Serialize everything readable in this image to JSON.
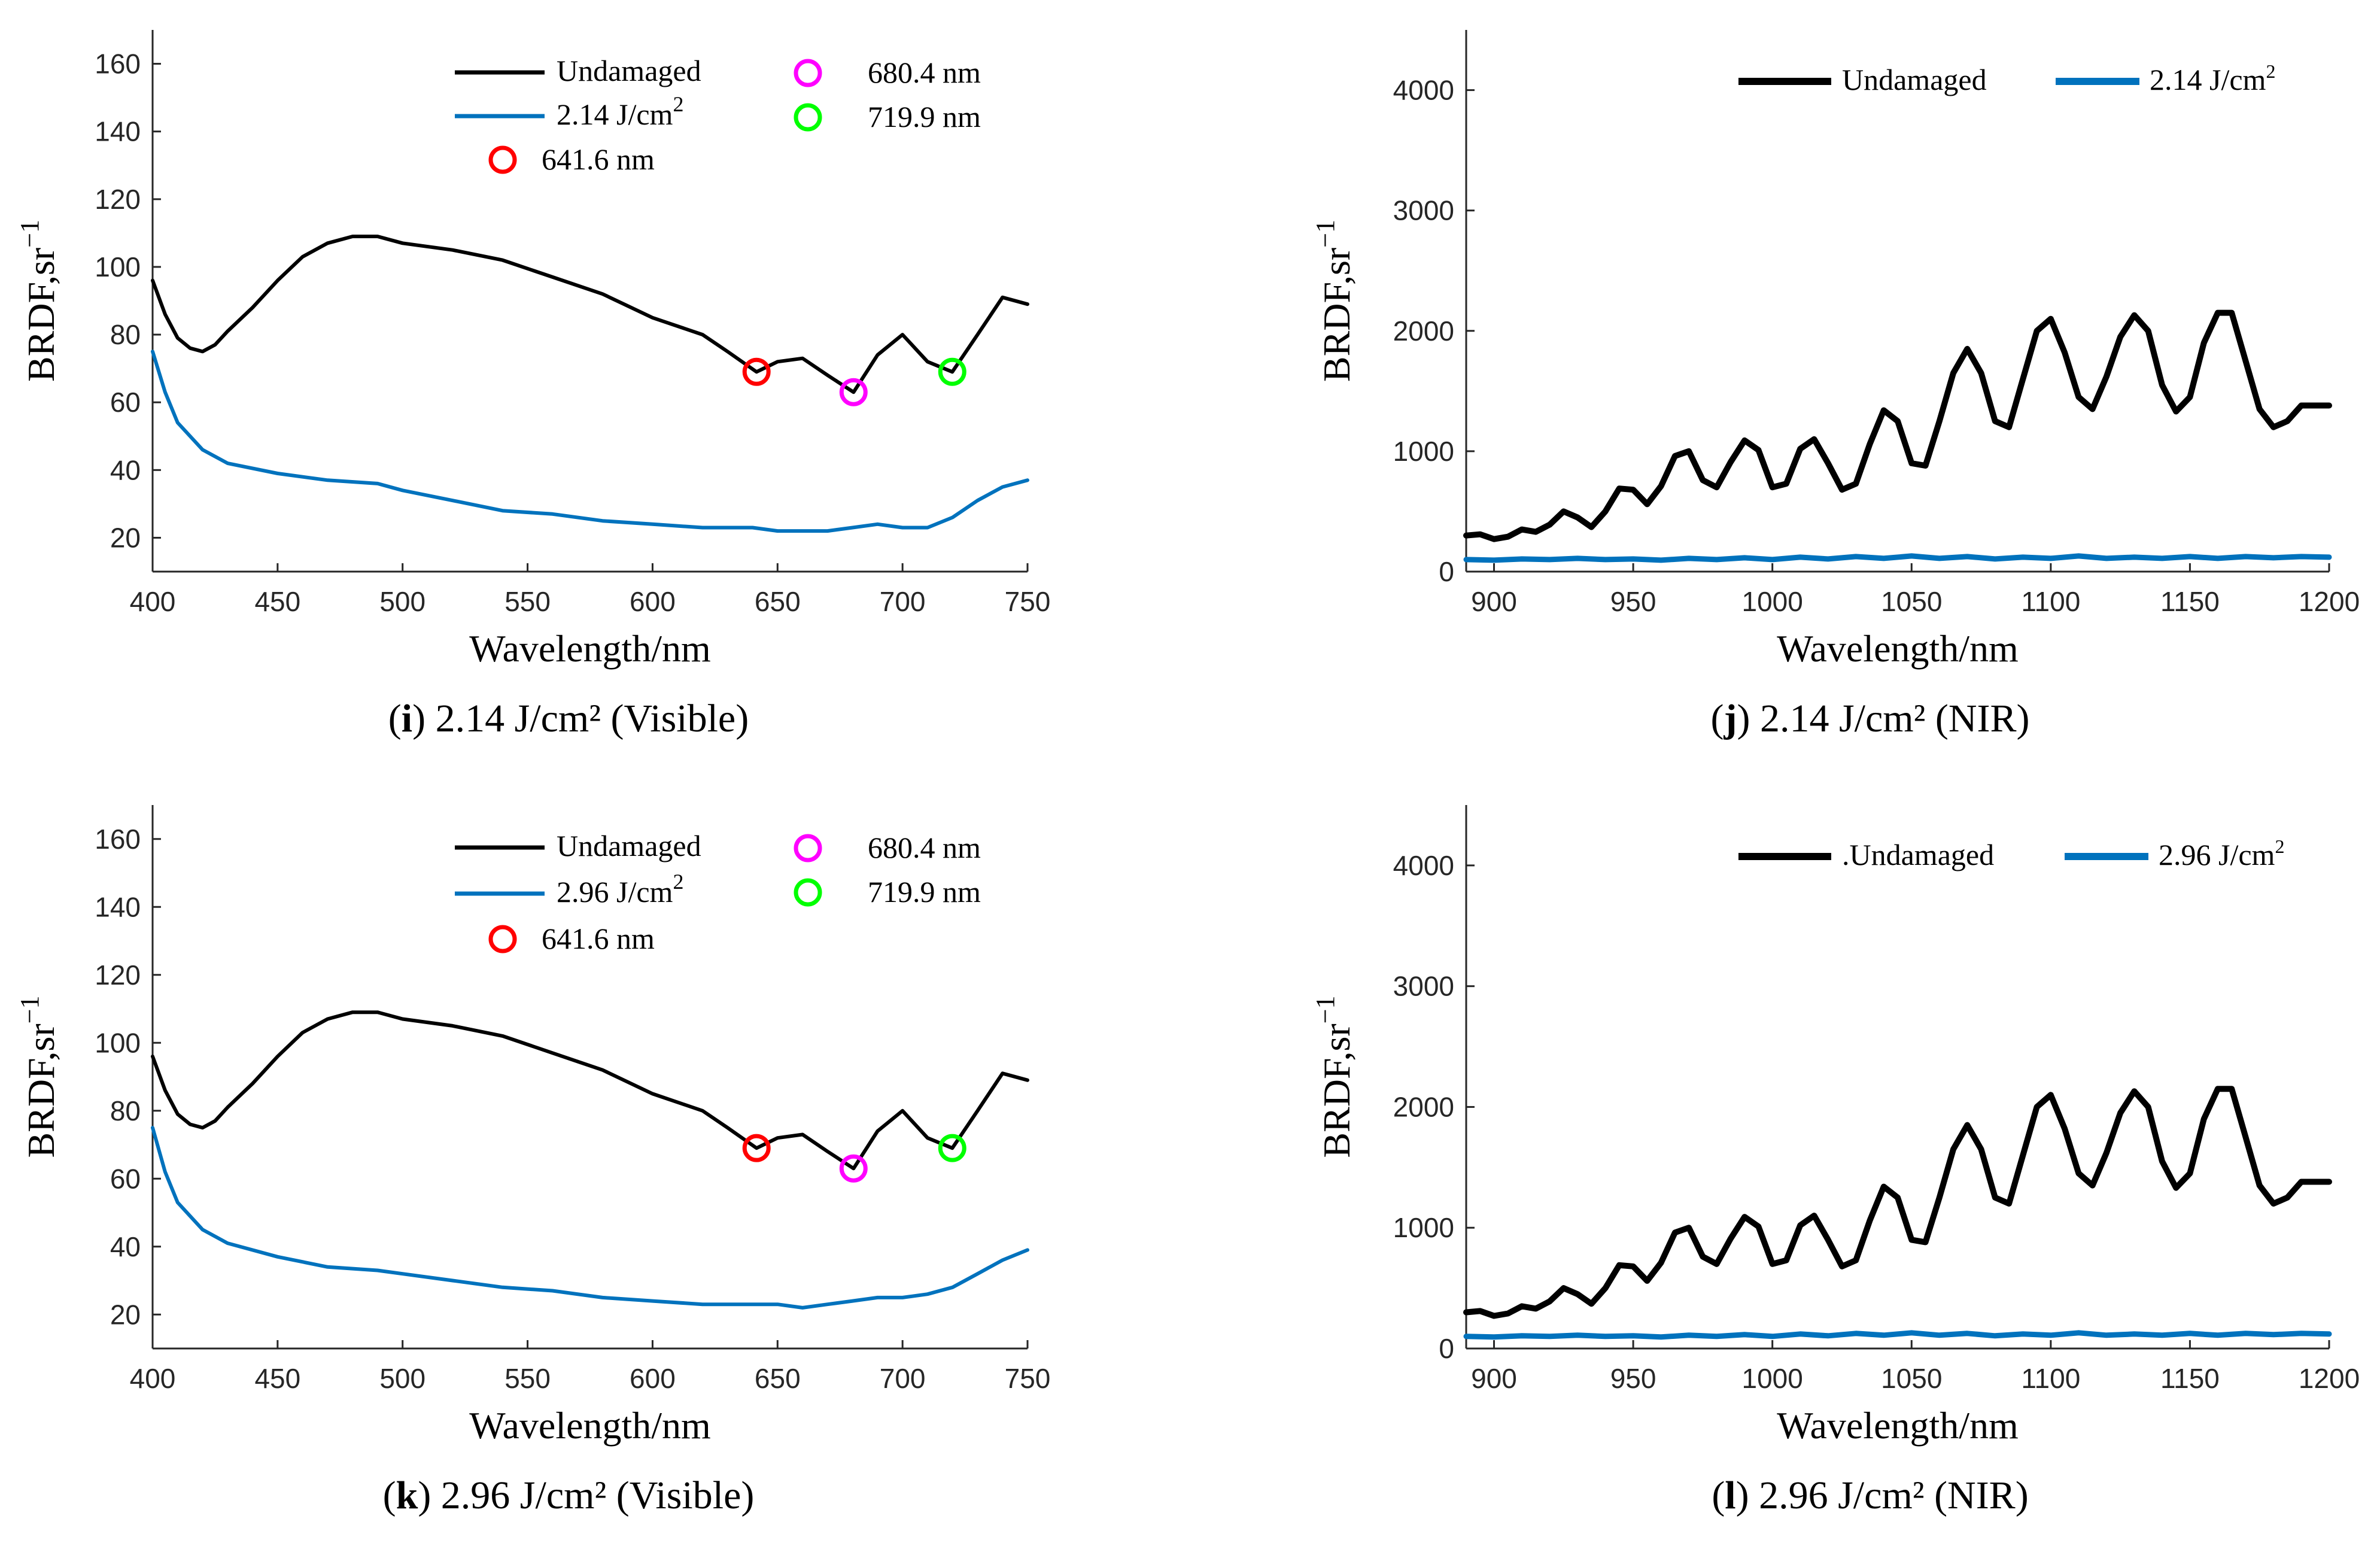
{
  "colors": {
    "undamaged": "#000000",
    "damaged": "#0072BD",
    "marker_641": "#ff0000",
    "marker_680": "#ff00ff",
    "marker_719": "#00ff00",
    "axis": "#262626"
  },
  "chart_data": [
    {
      "id": "i",
      "type": "line",
      "caption_letter": "i",
      "caption_text": " 2.14 J/cm² (Visible)",
      "xlabel": "Wavelength/nm",
      "ylabel": "BRDF,sr",
      "ylabel_sup": "−1",
      "xlim": [
        400,
        750
      ],
      "ylim": [
        10,
        170
      ],
      "xticks": [
        400,
        450,
        500,
        550,
        600,
        650,
        700,
        750
      ],
      "yticks": [
        20,
        40,
        60,
        80,
        100,
        120,
        140,
        160
      ],
      "legend": [
        {
          "label": "Undamaged",
          "kind": "line",
          "color_key": "undamaged"
        },
        {
          "label": "2.14 J/cm",
          "sup": "2",
          "kind": "line",
          "color_key": "damaged"
        },
        {
          "label": "641.6 nm",
          "kind": "marker",
          "color_key": "marker_641"
        },
        {
          "label": "680.4 nm",
          "kind": "marker",
          "color_key": "marker_680"
        },
        {
          "label": "719.9 nm",
          "kind": "marker",
          "color_key": "marker_719"
        }
      ],
      "series": [
        {
          "name": "Undamaged",
          "color_key": "undamaged",
          "x": [
            400,
            405,
            410,
            415,
            420,
            425,
            430,
            440,
            450,
            460,
            470,
            480,
            490,
            500,
            520,
            540,
            560,
            580,
            600,
            620,
            630,
            641.6,
            650,
            660,
            670,
            680.4,
            690,
            700,
            710,
            719.9,
            730,
            740,
            750
          ],
          "y": [
            96,
            86,
            79,
            76,
            75,
            77,
            81,
            88,
            96,
            103,
            107,
            109,
            109,
            107,
            105,
            102,
            97,
            92,
            85,
            80,
            75,
            69,
            72,
            73,
            68,
            63,
            74,
            80,
            72,
            69,
            80,
            91,
            89
          ]
        },
        {
          "name": "2.14 J/cm2",
          "color_key": "damaged",
          "x": [
            400,
            405,
            410,
            420,
            430,
            450,
            470,
            490,
            500,
            520,
            540,
            560,
            580,
            600,
            620,
            640,
            650,
            660,
            670,
            680,
            690,
            700,
            710,
            720,
            730,
            740,
            750
          ],
          "y": [
            75,
            63,
            54,
            46,
            42,
            39,
            37,
            36,
            34,
            31,
            28,
            27,
            25,
            24,
            23,
            23,
            22,
            22,
            22,
            23,
            24,
            23,
            23,
            26,
            31,
            35,
            37
          ]
        }
      ],
      "markers": [
        {
          "label": "641.6 nm",
          "x": 641.6,
          "y": 69,
          "color_key": "marker_641"
        },
        {
          "label": "680.4 nm",
          "x": 680.4,
          "y": 63,
          "color_key": "marker_680"
        },
        {
          "label": "719.9 nm",
          "x": 719.9,
          "y": 69,
          "color_key": "marker_719"
        }
      ]
    },
    {
      "id": "j",
      "type": "line",
      "caption_letter": "j",
      "caption_text": " 2.14 J/cm² (NIR)",
      "xlabel": "Wavelength/nm",
      "ylabel": "BRDF,sr",
      "ylabel_sup": "−1",
      "xlim": [
        890,
        1200
      ],
      "ylim": [
        0,
        4500
      ],
      "xticks": [
        900,
        950,
        1000,
        1050,
        1100,
        1150,
        1200
      ],
      "yticks": [
        0,
        1000,
        2000,
        3000,
        4000
      ],
      "legend": [
        {
          "label": "Undamaged",
          "kind": "line",
          "color_key": "undamaged"
        },
        {
          "label": "2.14 J/cm",
          "sup": "2",
          "kind": "line",
          "color_key": "damaged"
        }
      ],
      "series": [
        {
          "name": "Undamaged",
          "color_key": "undamaged",
          "x": [
            890,
            895,
            900,
            905,
            910,
            915,
            920,
            925,
            930,
            935,
            940,
            945,
            950,
            955,
            960,
            965,
            970,
            975,
            980,
            985,
            990,
            995,
            1000,
            1005,
            1010,
            1015,
            1020,
            1025,
            1030,
            1035,
            1040,
            1045,
            1050,
            1055,
            1060,
            1065,
            1070,
            1075,
            1080,
            1085,
            1090,
            1095,
            1100,
            1105,
            1110,
            1115,
            1120,
            1125,
            1130,
            1135,
            1140,
            1145,
            1150,
            1155,
            1160,
            1165,
            1170,
            1175,
            1180,
            1185,
            1190,
            1195,
            1200
          ],
          "y": [
            300,
            310,
            270,
            290,
            350,
            330,
            390,
            500,
            450,
            370,
            500,
            690,
            680,
            560,
            710,
            960,
            1000,
            760,
            700,
            910,
            1090,
            1010,
            700,
            730,
            1020,
            1100,
            900,
            680,
            730,
            1060,
            1340,
            1250,
            900,
            880,
            1250,
            1650,
            1850,
            1650,
            1250,
            1200,
            1600,
            2000,
            2100,
            1820,
            1450,
            1350,
            1620,
            1950,
            2130,
            2000,
            1550,
            1330,
            1450,
            1900,
            2150,
            2150,
            1750,
            1350,
            1200,
            1250,
            1380,
            1380,
            1380
          ]
        },
        {
          "name": "2.14 J/cm2",
          "color_key": "damaged",
          "x": [
            890,
            900,
            910,
            920,
            930,
            940,
            950,
            960,
            970,
            980,
            990,
            1000,
            1010,
            1020,
            1030,
            1040,
            1050,
            1060,
            1070,
            1080,
            1090,
            1100,
            1110,
            1120,
            1130,
            1140,
            1150,
            1160,
            1170,
            1180,
            1190,
            1200
          ],
          "y": [
            100,
            95,
            105,
            100,
            110,
            100,
            105,
            95,
            110,
            100,
            115,
            100,
            120,
            105,
            125,
            110,
            130,
            110,
            125,
            105,
            120,
            110,
            130,
            110,
            120,
            110,
            125,
            110,
            125,
            115,
            125,
            120
          ]
        }
      ],
      "markers": []
    },
    {
      "id": "k",
      "type": "line",
      "caption_letter": "k",
      "caption_text": " 2.96 J/cm² (Visible)",
      "xlabel": "Wavelength/nm",
      "ylabel": "BRDF,sr",
      "ylabel_sup": "−1",
      "xlim": [
        400,
        750
      ],
      "ylim": [
        10,
        170
      ],
      "xticks": [
        400,
        450,
        500,
        550,
        600,
        650,
        700,
        750
      ],
      "yticks": [
        20,
        40,
        60,
        80,
        100,
        120,
        140,
        160
      ],
      "legend": [
        {
          "label": "Undamaged",
          "kind": "line",
          "color_key": "undamaged"
        },
        {
          "label": "2.96 J/cm",
          "sup": "2",
          "kind": "line",
          "color_key": "damaged"
        },
        {
          "label": "641.6 nm",
          "kind": "marker",
          "color_key": "marker_641"
        },
        {
          "label": "680.4 nm",
          "kind": "marker",
          "color_key": "marker_680"
        },
        {
          "label": "719.9 nm",
          "kind": "marker",
          "color_key": "marker_719"
        }
      ],
      "series": [
        {
          "name": "Undamaged",
          "color_key": "undamaged",
          "x": [
            400,
            405,
            410,
            415,
            420,
            425,
            430,
            440,
            450,
            460,
            470,
            480,
            490,
            500,
            520,
            540,
            560,
            580,
            600,
            620,
            630,
            641.6,
            650,
            660,
            670,
            680.4,
            690,
            700,
            710,
            719.9,
            730,
            740,
            750
          ],
          "y": [
            96,
            86,
            79,
            76,
            75,
            77,
            81,
            88,
            96,
            103,
            107,
            109,
            109,
            107,
            105,
            102,
            97,
            92,
            85,
            80,
            75,
            69,
            72,
            73,
            68,
            63,
            74,
            80,
            72,
            69,
            80,
            91,
            89
          ]
        },
        {
          "name": "2.96 J/cm2",
          "color_key": "damaged",
          "x": [
            400,
            405,
            410,
            420,
            430,
            450,
            470,
            490,
            500,
            520,
            540,
            560,
            580,
            600,
            620,
            640,
            650,
            660,
            670,
            680,
            690,
            700,
            710,
            720,
            730,
            740,
            750
          ],
          "y": [
            75,
            62,
            53,
            45,
            41,
            37,
            34,
            33,
            32,
            30,
            28,
            27,
            25,
            24,
            23,
            23,
            23,
            22,
            23,
            24,
            25,
            25,
            26,
            28,
            32,
            36,
            39
          ]
        }
      ],
      "markers": [
        {
          "label": "641.6 nm",
          "x": 641.6,
          "y": 69,
          "color_key": "marker_641"
        },
        {
          "label": "680.4 nm",
          "x": 680.4,
          "y": 63,
          "color_key": "marker_680"
        },
        {
          "label": "719.9 nm",
          "x": 719.9,
          "y": 69,
          "color_key": "marker_719"
        }
      ]
    },
    {
      "id": "l",
      "type": "line",
      "caption_letter": "l",
      "caption_text": " 2.96 J/cm² (NIR)",
      "xlabel": "Wavelength/nm",
      "ylabel": "BRDF,sr",
      "ylabel_sup": "−1",
      "xlim": [
        890,
        1200
      ],
      "ylim": [
        0,
        4500
      ],
      "xticks": [
        900,
        950,
        1000,
        1050,
        1100,
        1150,
        1200
      ],
      "yticks": [
        0,
        1000,
        2000,
        3000,
        4000
      ],
      "legend": [
        {
          "label": ".Undamaged",
          "kind": "line",
          "color_key": "undamaged"
        },
        {
          "label": "2.96 J/cm",
          "sup": "2",
          "kind": "line",
          "color_key": "damaged"
        }
      ],
      "series": [
        {
          "name": "Undamaged",
          "color_key": "undamaged",
          "x": [
            890,
            895,
            900,
            905,
            910,
            915,
            920,
            925,
            930,
            935,
            940,
            945,
            950,
            955,
            960,
            965,
            970,
            975,
            980,
            985,
            990,
            995,
            1000,
            1005,
            1010,
            1015,
            1020,
            1025,
            1030,
            1035,
            1040,
            1045,
            1050,
            1055,
            1060,
            1065,
            1070,
            1075,
            1080,
            1085,
            1090,
            1095,
            1100,
            1105,
            1110,
            1115,
            1120,
            1125,
            1130,
            1135,
            1140,
            1145,
            1150,
            1155,
            1160,
            1165,
            1170,
            1175,
            1180,
            1185,
            1190,
            1195,
            1200
          ],
          "y": [
            300,
            310,
            270,
            290,
            350,
            330,
            390,
            500,
            450,
            370,
            500,
            690,
            680,
            560,
            710,
            960,
            1000,
            760,
            700,
            910,
            1090,
            1010,
            700,
            730,
            1020,
            1100,
            900,
            680,
            730,
            1060,
            1340,
            1250,
            900,
            880,
            1250,
            1650,
            1850,
            1650,
            1250,
            1200,
            1600,
            2000,
            2100,
            1820,
            1450,
            1350,
            1620,
            1950,
            2130,
            2000,
            1550,
            1330,
            1450,
            1900,
            2150,
            2150,
            1750,
            1350,
            1200,
            1250,
            1380,
            1380,
            1380
          ]
        },
        {
          "name": "2.96 J/cm2",
          "color_key": "damaged",
          "x": [
            890,
            900,
            910,
            920,
            930,
            940,
            950,
            960,
            970,
            980,
            990,
            1000,
            1010,
            1020,
            1030,
            1040,
            1050,
            1060,
            1070,
            1080,
            1090,
            1100,
            1110,
            1120,
            1130,
            1140,
            1150,
            1160,
            1170,
            1180,
            1190,
            1200
          ],
          "y": [
            100,
            95,
            105,
            100,
            110,
            100,
            105,
            95,
            110,
            100,
            115,
            100,
            120,
            105,
            125,
            110,
            130,
            110,
            125,
            105,
            120,
            110,
            130,
            110,
            120,
            110,
            125,
            110,
            125,
            115,
            125,
            120
          ]
        }
      ],
      "markers": []
    }
  ]
}
